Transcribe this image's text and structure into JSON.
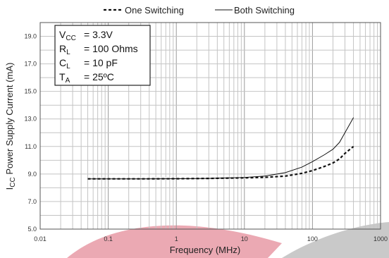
{
  "chart_data": {
    "type": "line",
    "title": "",
    "xlabel": "Frequency (MHz)",
    "ylabel": "I",
    "ylabel_sub": "CC",
    "ylabel_rest": " Power Supply Current (mA)",
    "x_scale": "log",
    "xlim": [
      0.01,
      1000
    ],
    "ylim": [
      5.0,
      20.0
    ],
    "x_tick_labels": [
      "0.01",
      "0.1",
      "1",
      "10",
      "100",
      "1000"
    ],
    "y_tick_labels": [
      "5.0",
      "7.0",
      "9.0",
      "11.0",
      "13.0",
      "15.0",
      "17.0",
      "19.0"
    ],
    "grid": true,
    "legend_position": "top",
    "series": [
      {
        "name": "One Switching",
        "style": "dashed",
        "color": "#111111",
        "x": [
          0.05,
          0.1,
          0.3,
          1,
          3,
          10,
          20,
          40,
          70,
          100,
          150,
          200,
          250,
          300,
          400
        ],
        "y": [
          8.65,
          8.65,
          8.65,
          8.66,
          8.68,
          8.72,
          8.76,
          8.85,
          9.05,
          9.25,
          9.55,
          9.8,
          10.1,
          10.5,
          11.0
        ]
      },
      {
        "name": "Both Switching",
        "style": "solid",
        "color": "#111111",
        "x": [
          0.05,
          0.1,
          0.3,
          1,
          3,
          10,
          20,
          40,
          70,
          100,
          150,
          200,
          250,
          300,
          400
        ],
        "y": [
          8.65,
          8.65,
          8.65,
          8.66,
          8.68,
          8.75,
          8.85,
          9.1,
          9.5,
          9.9,
          10.4,
          10.8,
          11.3,
          12.0,
          13.1
        ]
      }
    ],
    "conditions": [
      {
        "sym": "V",
        "sub": "CC",
        "value": "= 3.3V"
      },
      {
        "sym": "R",
        "sub": "L",
        "value": "= 100 Ohms"
      },
      {
        "sym": "C",
        "sub": "L",
        "value": "= 10 pF"
      },
      {
        "sym": "T",
        "sub": "A",
        "value": "= 25ºC"
      }
    ]
  }
}
